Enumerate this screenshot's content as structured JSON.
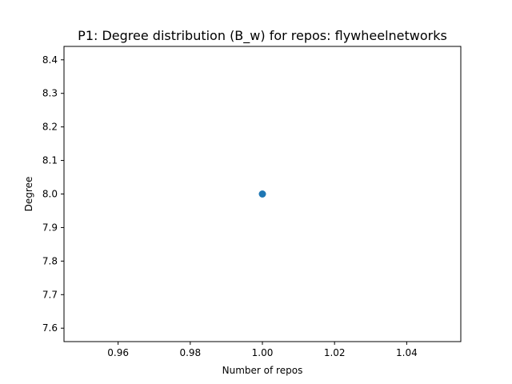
{
  "chart_data": {
    "type": "scatter",
    "title": "P1: Degree distribution (B_w) for repos: flywheelnetworks",
    "xlabel": "Number of repos",
    "ylabel": "Degree",
    "xlim": [
      0.945,
      1.055
    ],
    "ylim": [
      7.56,
      8.44
    ],
    "xticks": [
      0.96,
      0.98,
      1.0,
      1.02,
      1.04
    ],
    "xtick_labels": [
      "0.96",
      "0.98",
      "1.00",
      "1.02",
      "1.04"
    ],
    "yticks": [
      7.6,
      7.7,
      7.8,
      7.9,
      8.0,
      8.1,
      8.2,
      8.3,
      8.4
    ],
    "ytick_labels": [
      "7.6",
      "7.7",
      "7.8",
      "7.9",
      "8.0",
      "8.1",
      "8.2",
      "8.3",
      "8.4"
    ],
    "grid": false,
    "legend": false,
    "series": [
      {
        "x": [
          1.0
        ],
        "y": [
          8.0
        ],
        "color": "#1f77b4"
      }
    ]
  }
}
